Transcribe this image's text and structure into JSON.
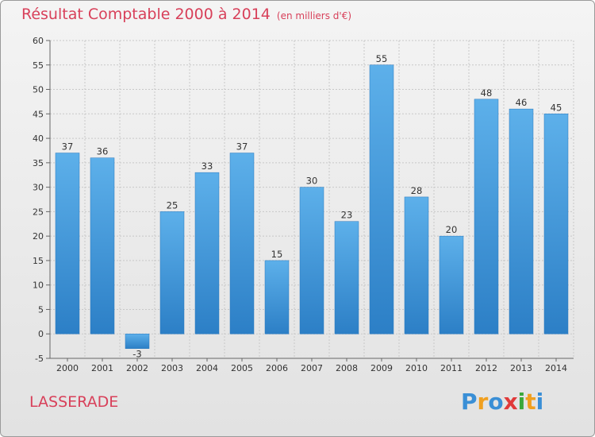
{
  "header": {
    "title": "Résultat Comptable 2000 à 2014",
    "unit": "(en milliers d'€)"
  },
  "commune": "LASSERADE",
  "logo": {
    "letters": [
      "P",
      "r",
      "o",
      "x",
      "i",
      "t",
      "i"
    ],
    "colors": [
      "#3a8fd6",
      "#f0a020",
      "#3a8fd6",
      "#e03a3a",
      "#3aa83a",
      "#f0a020",
      "#3a8fd6"
    ]
  },
  "chart_data": {
    "type": "bar",
    "categories": [
      "2000",
      "2001",
      "2002",
      "2003",
      "2004",
      "2005",
      "2006",
      "2007",
      "2008",
      "2009",
      "2010",
      "2011",
      "2012",
      "2013",
      "2014"
    ],
    "values": [
      37,
      36,
      -3,
      25,
      33,
      37,
      15,
      30,
      23,
      55,
      28,
      20,
      48,
      46,
      45
    ],
    "ylim": [
      -5,
      60
    ],
    "yticks": [
      -5,
      0,
      5,
      10,
      15,
      20,
      25,
      30,
      35,
      40,
      45,
      50,
      55,
      60
    ],
    "grid": true,
    "bar_color": "#4ea3e0"
  }
}
